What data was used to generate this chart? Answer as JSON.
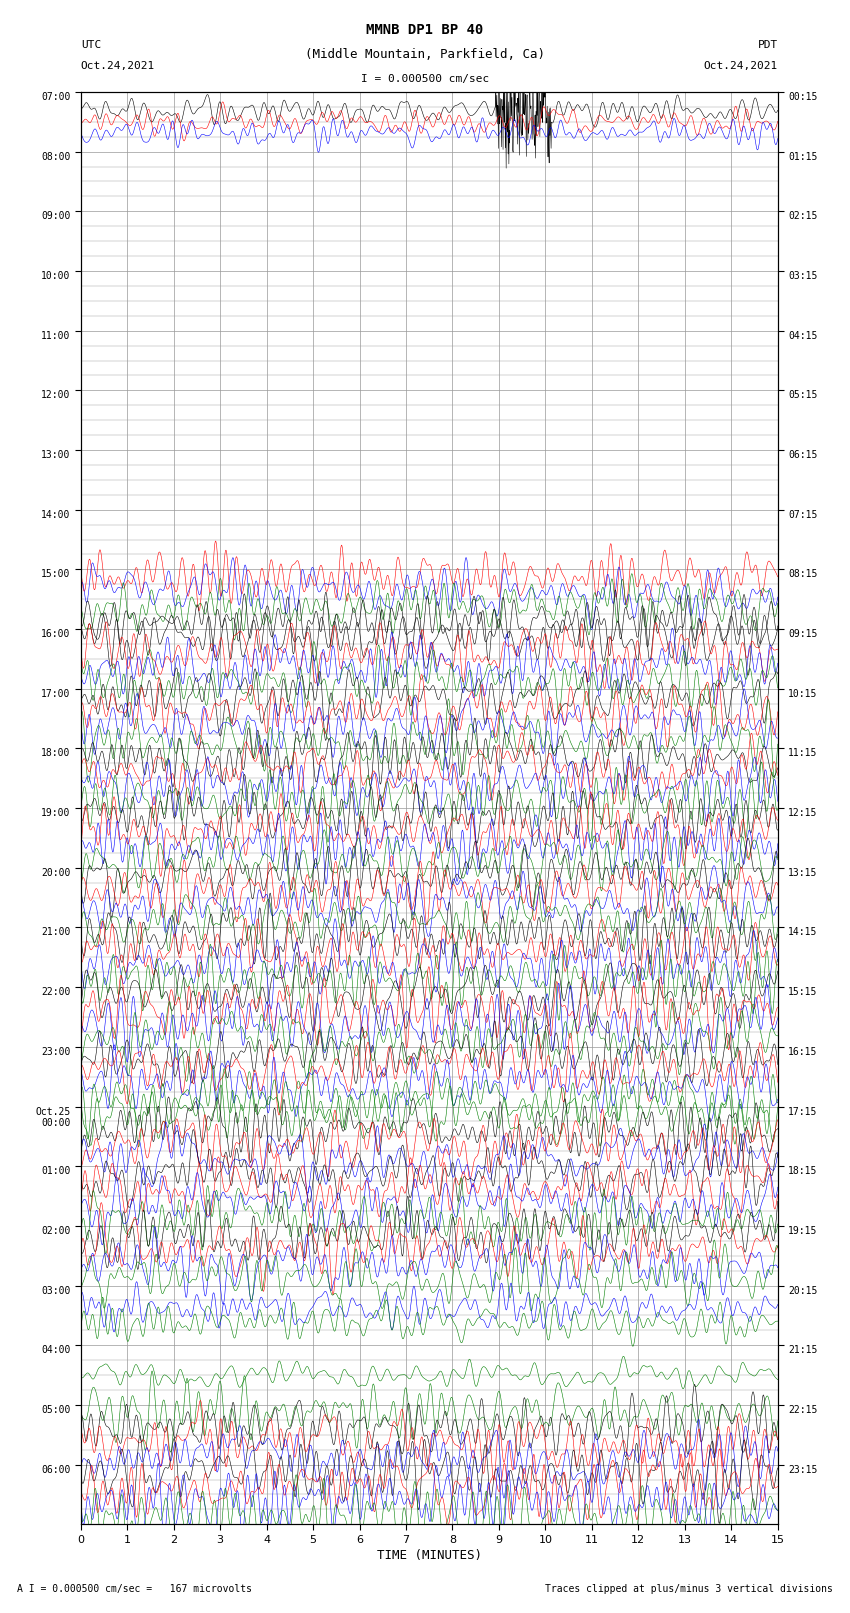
{
  "title_line1": "MMNB DP1 BP 40",
  "title_line2": "(Middle Mountain, Parkfield, Ca)",
  "scale_text": "I = 0.000500 cm/sec",
  "footnote_left": "A I = 0.000500 cm/sec =   167 microvolts",
  "footnote_right": "Traces clipped at plus/minus 3 vertical divisions",
  "bottom_label": "TIME (MINUTES)",
  "utc_times": [
    "07:00",
    "08:00",
    "09:00",
    "10:00",
    "11:00",
    "12:00",
    "13:00",
    "14:00",
    "15:00",
    "16:00",
    "17:00",
    "18:00",
    "19:00",
    "20:00",
    "21:00",
    "22:00",
    "23:00",
    "Oct.25\n00:00",
    "01:00",
    "02:00",
    "03:00",
    "04:00",
    "05:00",
    "06:00"
  ],
  "pdt_times": [
    "00:15",
    "01:15",
    "02:15",
    "03:15",
    "04:15",
    "05:15",
    "06:15",
    "07:15",
    "08:15",
    "09:15",
    "10:15",
    "11:15",
    "12:15",
    "13:15",
    "14:15",
    "15:15",
    "16:15",
    "17:15",
    "18:15",
    "19:15",
    "20:15",
    "21:15",
    "22:15",
    "23:15"
  ],
  "n_rows": 24,
  "n_minutes": 15,
  "bg_color": "#ffffff",
  "grid_color": "#999999",
  "fig_width": 8.5,
  "fig_height": 16.13,
  "row_descriptions": [
    {
      "row": 0,
      "type": "three_traces",
      "colors": [
        "black",
        "red",
        "blue"
      ],
      "amp": 0.1,
      "has_spike": true
    },
    {
      "row": 1,
      "type": "empty"
    },
    {
      "row": 2,
      "type": "empty"
    },
    {
      "row": 3,
      "type": "empty"
    },
    {
      "row": 4,
      "type": "empty"
    },
    {
      "row": 5,
      "type": "empty"
    },
    {
      "row": 6,
      "type": "empty"
    },
    {
      "row": 7,
      "type": "empty"
    },
    {
      "row": 8,
      "type": "four_traces",
      "colors": [
        "red",
        "blue",
        "green",
        "black"
      ],
      "amp": 0.2
    },
    {
      "row": 9,
      "type": "four_traces",
      "colors": [
        "black",
        "red",
        "blue",
        "green"
      ],
      "amp": 0.22
    },
    {
      "row": 10,
      "type": "four_traces",
      "colors": [
        "black",
        "red",
        "blue",
        "green"
      ],
      "amp": 0.22
    },
    {
      "row": 11,
      "type": "four_traces",
      "colors": [
        "black",
        "red",
        "blue",
        "green"
      ],
      "amp": 0.22
    },
    {
      "row": 12,
      "type": "four_traces",
      "colors": [
        "black",
        "red",
        "blue",
        "green"
      ],
      "amp": 0.22
    },
    {
      "row": 13,
      "type": "four_traces",
      "colors": [
        "black",
        "red",
        "blue",
        "green"
      ],
      "amp": 0.22
    },
    {
      "row": 14,
      "type": "four_traces",
      "colors": [
        "black",
        "red",
        "blue",
        "green"
      ],
      "amp": 0.22
    },
    {
      "row": 15,
      "type": "four_traces",
      "colors": [
        "black",
        "red",
        "blue",
        "green"
      ],
      "amp": 0.25
    },
    {
      "row": 16,
      "type": "four_traces",
      "colors": [
        "black",
        "red",
        "blue",
        "green"
      ],
      "amp": 0.22
    },
    {
      "row": 17,
      "type": "four_traces",
      "colors": [
        "green",
        "black",
        "red",
        "blue"
      ],
      "amp": 0.22
    },
    {
      "row": 18,
      "type": "four_traces",
      "colors": [
        "black",
        "red",
        "blue",
        "green"
      ],
      "amp": 0.22
    },
    {
      "row": 19,
      "type": "four_traces",
      "colors": [
        "black",
        "red",
        "blue",
        "green"
      ],
      "amp": 0.22
    },
    {
      "row": 20,
      "type": "partial",
      "colors": [
        "blue",
        "green"
      ],
      "amp": 0.15
    },
    {
      "row": 21,
      "type": "partial",
      "colors": [
        "green"
      ],
      "amp": 0.1
    },
    {
      "row": 22,
      "type": "four_traces",
      "colors": [
        "green",
        "black",
        "red",
        "blue"
      ],
      "amp": 0.22
    },
    {
      "row": 23,
      "type": "four_traces",
      "colors": [
        "black",
        "red",
        "blue",
        "green"
      ],
      "amp": 0.25
    }
  ],
  "sub_offsets_4": [
    0.375,
    0.125,
    -0.125,
    -0.375
  ],
  "sub_offsets_3": [
    0.18,
    0.0,
    -0.18
  ],
  "sub_offsets_2": [
    0.12,
    -0.12
  ],
  "sub_offsets_1": [
    0.0
  ]
}
